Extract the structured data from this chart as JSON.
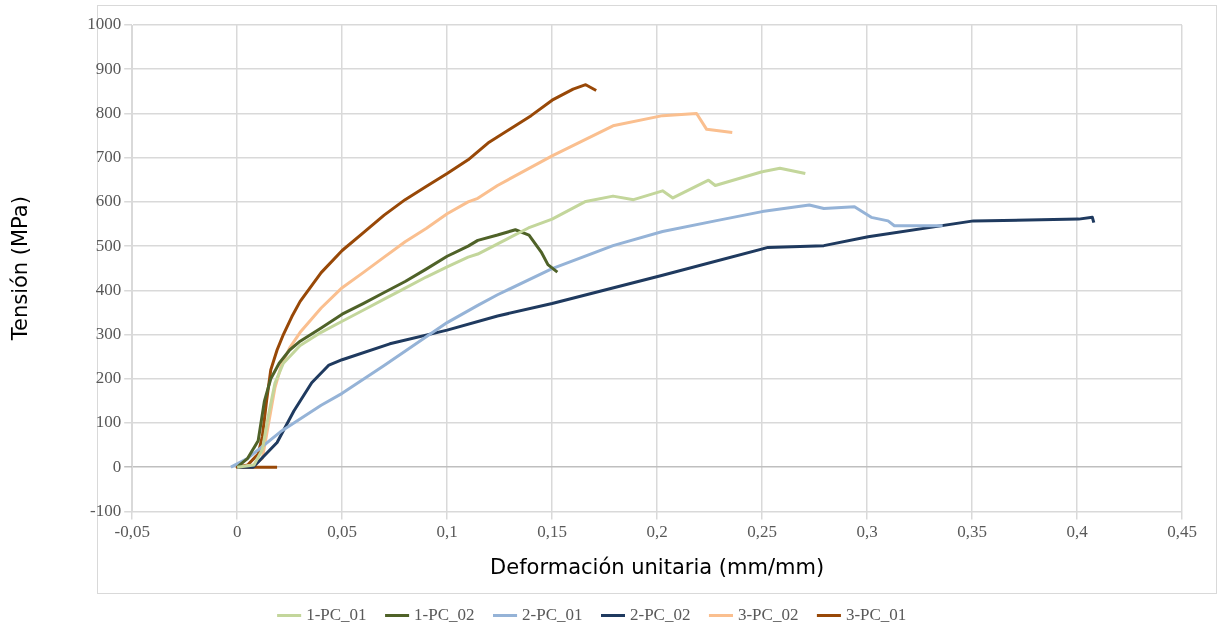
{
  "chart_data": {
    "type": "line",
    "xlabel": "Deformación unitaria (mm/mm)",
    "ylabel": "Tensión (MPa)",
    "xlim": [
      -0.05,
      0.45
    ],
    "xticks": [
      {
        "value": -0.05,
        "label": "-0,05"
      },
      0,
      {
        "value": 0.05,
        "label": "0,05"
      },
      {
        "value": 0.1,
        "label": "0,1"
      },
      {
        "value": 0.15,
        "label": "0,15"
      },
      {
        "value": 0.2,
        "label": "0,2"
      },
      {
        "value": 0.25,
        "label": "0,25"
      },
      {
        "value": 0.3,
        "label": "0,3"
      },
      {
        "value": 0.35,
        "label": "0,35"
      },
      {
        "value": 0.4,
        "label": "0,4"
      },
      {
        "value": 0.45,
        "label": "0,45"
      }
    ],
    "ylim": [
      -100,
      1000
    ],
    "yticks": [
      -100,
      0,
      100,
      200,
      300,
      400,
      500,
      600,
      700,
      800,
      900,
      1000
    ],
    "grid": true,
    "legend": "bottom",
    "series": [
      {
        "name": "1-PC_01",
        "color": "#c3d69b",
        "x": [
          0,
          0.008,
          0.012,
          0.015,
          0.018,
          0.022,
          0.03,
          0.04,
          0.05,
          0.06,
          0.07,
          0.08,
          0.09,
          0.1,
          0.11,
          0.1146,
          0.1387,
          0.15,
          0.166,
          0.179,
          0.1888,
          0.2026,
          0.2075,
          0.2245,
          0.2277,
          0.25,
          0.2585,
          0.2706
        ],
        "values": [
          0,
          5,
          40,
          120,
          190,
          235,
          275,
          305,
          330,
          355,
          380,
          405,
          430,
          453,
          475,
          482,
          541,
          561,
          601,
          613,
          605,
          625,
          609,
          649,
          637,
          668,
          676,
          664
        ]
      },
      {
        "name": "1-PC_02",
        "color": "#4f6228",
        "x": [
          0,
          0.005,
          0.01,
          0.013,
          0.016,
          0.02,
          0.025,
          0.03,
          0.04,
          0.05,
          0.06,
          0.07,
          0.08,
          0.09,
          0.1,
          0.11,
          0.1146,
          0.124,
          0.1325,
          0.139,
          0.145,
          0.148,
          0.1525
        ],
        "values": [
          0,
          20,
          60,
          150,
          200,
          235,
          265,
          285,
          315,
          346,
          370,
          395,
          420,
          448,
          477,
          500,
          513,
          525,
          537,
          525,
          485,
          458,
          441
        ]
      },
      {
        "name": "2-PC_01",
        "color": "#95b3d7",
        "x": [
          -0.003,
          0.005,
          0.0206,
          0.04,
          0.05,
          0.07,
          0.1,
          0.1146,
          0.124,
          0.15,
          0.179,
          0.2026,
          0.2277,
          0.25,
          0.2725,
          0.2794,
          0.294,
          0.302,
          0.31,
          0.313,
          0.336
        ],
        "values": [
          0,
          20,
          80,
          140,
          167,
          230,
          327,
          366,
          390,
          449,
          501,
          533,
          557,
          578,
          593,
          585,
          589,
          565,
          557,
          546,
          546
        ]
      },
      {
        "name": "2-PC_02",
        "color": "#1f3a5f",
        "x": [
          0,
          0.0076,
          0.019,
          0.027,
          0.0355,
          0.0437,
          0.05,
          0.0727,
          0.1,
          0.124,
          0.15,
          0.2026,
          0.2528,
          0.2794,
          0.3005,
          0.3507,
          0.4008,
          0.4073,
          0.408
        ],
        "values": [
          0,
          0,
          56,
          127,
          191,
          231,
          243,
          279,
          310,
          342,
          370,
          434,
          497,
          501,
          521,
          557,
          561,
          565,
          553
        ]
      },
      {
        "name": "3-PC_02",
        "color": "#fabf8f",
        "x": [
          0,
          0.008,
          0.012,
          0.015,
          0.018,
          0.021,
          0.025,
          0.03,
          0.04,
          0.05,
          0.06,
          0.07,
          0.08,
          0.09,
          0.1,
          0.11,
          0.1146,
          0.124,
          0.15,
          0.179,
          0.2026,
          0.2188,
          0.2236,
          0.2358
        ],
        "values": [
          0,
          5,
          20,
          100,
          180,
          230,
          270,
          305,
          360,
          406,
          440,
          475,
          510,
          540,
          573,
          600,
          608,
          637,
          704,
          772,
          795,
          800,
          764,
          757
        ]
      },
      {
        "name": "3-PC_01",
        "color": "#984807",
        "x": [
          0.019,
          0,
          0.005,
          0.01,
          0.012,
          0.014,
          0.016,
          0.019,
          0.022,
          0.026,
          0.03,
          0.04,
          0.05,
          0.06,
          0.07,
          0.08,
          0.09,
          0.1,
          0.11,
          0.12,
          0.13,
          0.14,
          0.15,
          0.16,
          0.166,
          0.171
        ],
        "values": [
          0,
          0,
          5,
          30,
          70,
          150,
          220,
          265,
          300,
          340,
          375,
          440,
          490,
          530,
          570,
          605,
          635,
          664,
          695,
          735,
          765,
          795,
          830,
          855,
          865,
          852
        ]
      }
    ]
  }
}
